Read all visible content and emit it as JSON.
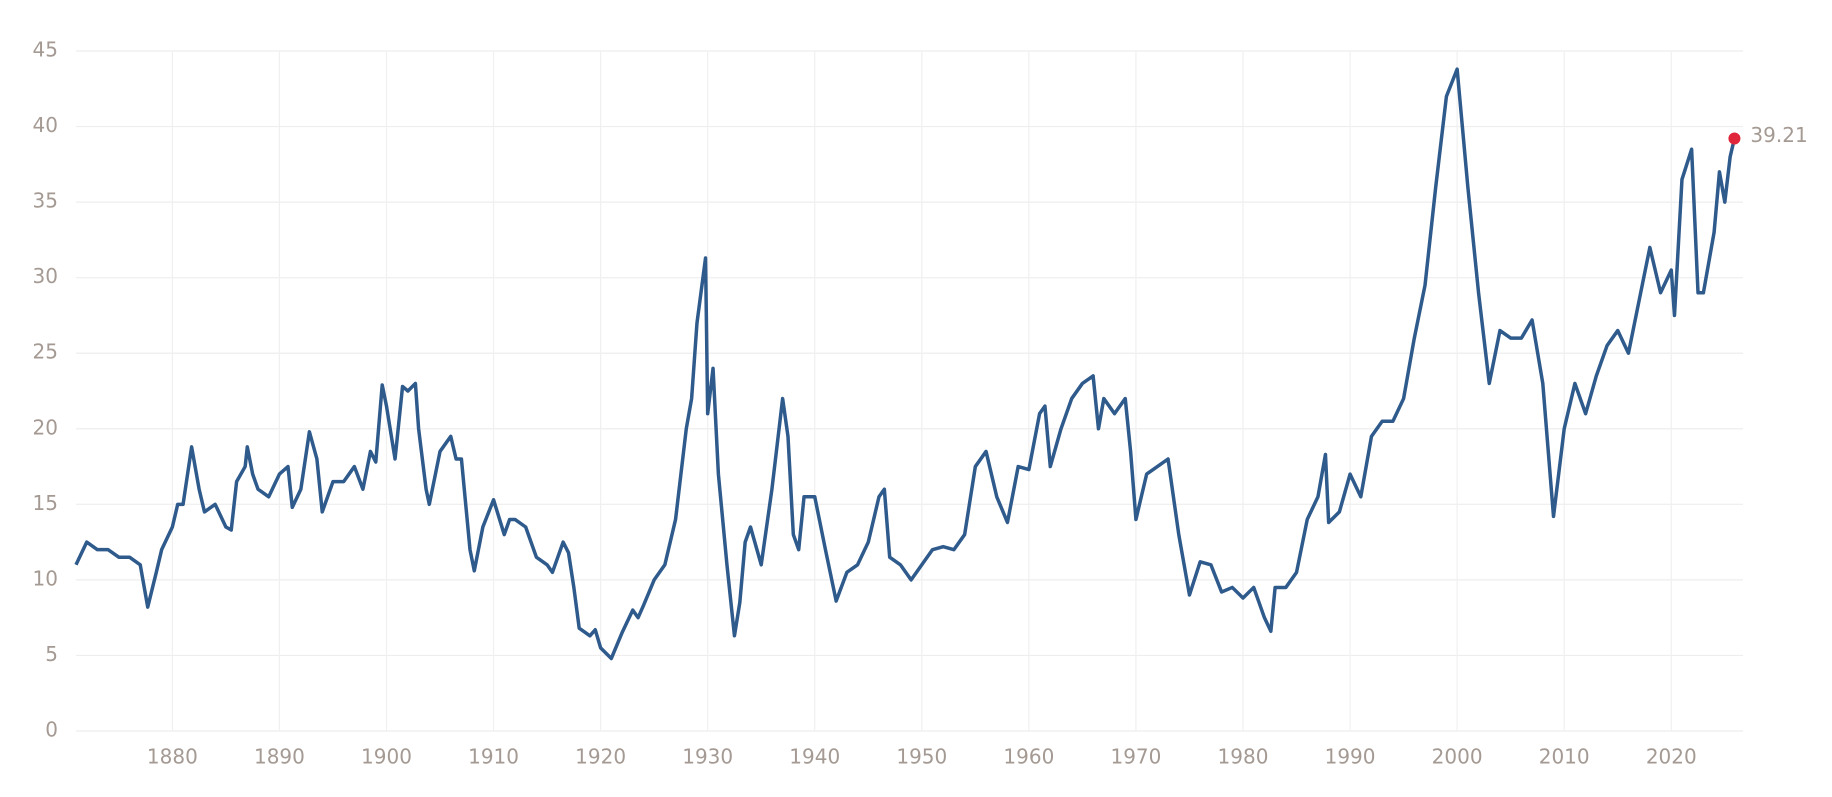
{
  "chart_data": {
    "type": "line",
    "color": "#2f5a8c",
    "marker_color": "#e0263a",
    "grid": true,
    "xlim": [
      1871,
      2026.7
    ],
    "ylim": [
      0,
      45
    ],
    "xticks": [
      1880,
      1890,
      1900,
      1910,
      1920,
      1930,
      1940,
      1950,
      1960,
      1970,
      1980,
      1990,
      2000,
      2010,
      2020
    ],
    "yticks": [
      0,
      5,
      10,
      15,
      20,
      25,
      30,
      35,
      40,
      45
    ],
    "x": [
      1871,
      1872,
      1873,
      1874,
      1875,
      1876,
      1877,
      1877.7,
      1878.5,
      1879,
      1880,
      1880.5,
      1881,
      1881.8,
      1882.5,
      1883,
      1884,
      1885,
      1885.5,
      1886,
      1886.8,
      1887,
      1887.5,
      1888,
      1889,
      1890,
      1890.8,
      1891.2,
      1892,
      1892.8,
      1893.5,
      1894,
      1895,
      1896,
      1897,
      1897.8,
      1898.5,
      1899,
      1899.6,
      1900,
      1900.8,
      1901.5,
      1902,
      1902.7,
      1903,
      1903.7,
      1904,
      1905,
      1906,
      1906.5,
      1907,
      1907.8,
      1908.2,
      1909,
      1910,
      1911,
      1911.5,
      1912,
      1913,
      1914,
      1915,
      1915.5,
      1916,
      1916.5,
      1917,
      1917.5,
      1918,
      1919,
      1919.5,
      1920,
      1921,
      1922,
      1923,
      1923.5,
      1924,
      1925,
      1926,
      1926.5,
      1927,
      1928,
      1928.5,
      1929,
      1929.8,
      1930,
      1930.5,
      1931,
      1931.8,
      1932.5,
      1933,
      1933.5,
      1934,
      1935,
      1936,
      1937,
      1937.5,
      1938,
      1938.5,
      1939,
      1940,
      1941,
      1942,
      1943,
      1944,
      1945,
      1946,
      1946.5,
      1947,
      1948,
      1949,
      1950,
      1951,
      1952,
      1953,
      1954,
      1955,
      1956,
      1957,
      1958,
      1959,
      1960,
      1961,
      1961.5,
      1962,
      1963,
      1964,
      1965,
      1966,
      1966.5,
      1967,
      1968,
      1969,
      1969.5,
      1970,
      1971,
      1972,
      1973,
      1974,
      1975,
      1976,
      1977,
      1978,
      1979,
      1980,
      1981,
      1982,
      1982.6,
      1983,
      1984,
      1985,
      1986,
      1987,
      1987.7,
      1988,
      1989,
      1990,
      1991,
      1992,
      1993,
      1994,
      1995,
      1996,
      1997,
      1998,
      1999,
      2000,
      2001,
      2002,
      2003,
      2004,
      2005,
      2006,
      2007,
      2008,
      2009,
      2010,
      2011,
      2012,
      2013,
      2014,
      2015,
      2016,
      2017,
      2018,
      2019,
      2020,
      2020.3,
      2021,
      2021.9,
      2022.5,
      2023,
      2024,
      2024.5,
      2025,
      2025.5,
      2025.9
    ],
    "values": [
      11,
      12.5,
      12,
      12,
      11.5,
      11.5,
      11,
      8.2,
      10.5,
      12,
      13.5,
      15,
      15,
      18.8,
      16,
      14.5,
      15,
      13.5,
      13.3,
      16.5,
      17.5,
      18.8,
      17,
      16,
      15.5,
      17,
      17.5,
      14.8,
      16,
      19.8,
      18,
      14.5,
      16.5,
      16.5,
      17.5,
      16,
      18.5,
      17.8,
      22.9,
      21.5,
      18,
      22.8,
      22.5,
      23,
      20,
      16,
      15,
      18.5,
      19.5,
      18,
      18,
      12,
      10.6,
      13.5,
      15.3,
      13,
      14,
      14,
      13.5,
      11.5,
      11,
      10.5,
      11.5,
      12.5,
      11.8,
      9.5,
      6.8,
      6.3,
      6.7,
      5.5,
      4.8,
      6.5,
      8,
      7.5,
      8.3,
      10,
      11,
      12.5,
      14,
      20,
      22,
      27,
      31.3,
      21,
      24,
      17,
      11,
      6.3,
      8.5,
      12.5,
      13.5,
      11,
      16,
      22,
      19.5,
      13,
      12,
      15.5,
      15.5,
      12,
      8.6,
      10.5,
      11,
      12.5,
      15.5,
      16,
      11.5,
      11,
      10,
      11,
      12,
      12.2,
      12,
      13,
      17.5,
      18.5,
      15.5,
      13.8,
      17.5,
      17.3,
      21,
      21.5,
      17.5,
      20,
      22,
      23,
      23.5,
      20,
      22,
      21,
      22,
      18.5,
      14,
      17,
      17.5,
      18,
      13,
      9,
      11.2,
      11,
      9.2,
      9.5,
      8.8,
      9.5,
      7.5,
      6.6,
      9.5,
      9.5,
      10.5,
      14,
      15.5,
      18.3,
      13.8,
      14.5,
      17,
      15.5,
      19.5,
      20.5,
      20.5,
      22,
      26,
      29.5,
      36,
      42,
      43.8,
      36,
      29,
      23,
      26.5,
      26,
      26,
      27.2,
      23,
      14.2,
      20,
      23,
      21,
      23.5,
      25.5,
      26.5,
      25,
      28.5,
      32,
      29,
      30.5,
      27.5,
      36.5,
      38.5,
      29,
      29,
      33,
      37,
      35,
      38,
      39.21
    ]
  }
}
